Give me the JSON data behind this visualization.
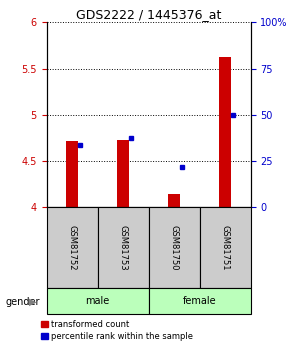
{
  "title": "GDS2222 / 1445376_at",
  "samples": [
    "GSM81752",
    "GSM81753",
    "GSM81750",
    "GSM81751"
  ],
  "red_values": [
    4.72,
    4.73,
    4.14,
    5.63
  ],
  "blue_values": [
    4.67,
    4.75,
    4.43,
    5.0
  ],
  "ylim_left": [
    4.0,
    6.0
  ],
  "yticks_left": [
    4.0,
    4.5,
    5.0,
    5.5,
    6.0
  ],
  "yticks_right": [
    0,
    25,
    50,
    75,
    100
  ],
  "ylim_right": [
    0,
    100
  ],
  "red_color": "#cc0000",
  "blue_color": "#0000cc",
  "bar_width": 0.25,
  "sample_bg_color": "#cccccc",
  "gender_bg_color": "#bbffbb",
  "title_fontsize": 9,
  "tick_fontsize": 7,
  "sample_fontsize": 6,
  "gender_fontsize": 7,
  "legend_fontsize": 6,
  "gender_groups": [
    {
      "label": "male",
      "start": 0,
      "end": 1
    },
    {
      "label": "female",
      "start": 2,
      "end": 3
    }
  ]
}
